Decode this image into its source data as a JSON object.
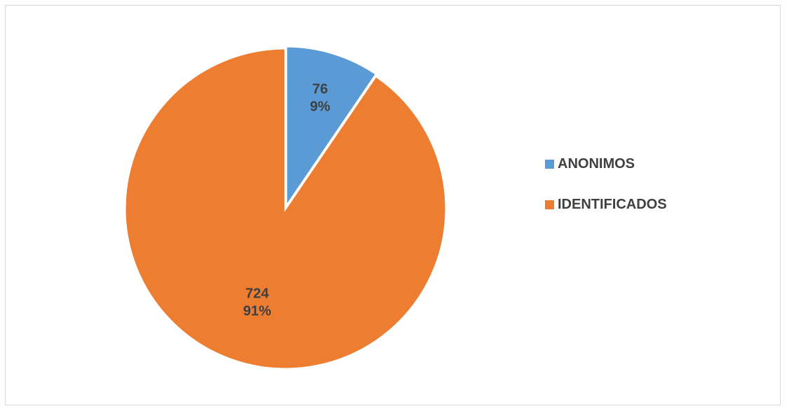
{
  "chart_data": {
    "type": "pie",
    "categories": [
      "ANONIMOS",
      "IDENTIFICADOS"
    ],
    "values": [
      76,
      724
    ],
    "percent_labels": [
      "9%",
      "91%"
    ],
    "colors": [
      "#5b9bd5",
      "#ed7d31"
    ],
    "exploded": [
      "ANONIMOS"
    ],
    "legend": "right"
  }
}
